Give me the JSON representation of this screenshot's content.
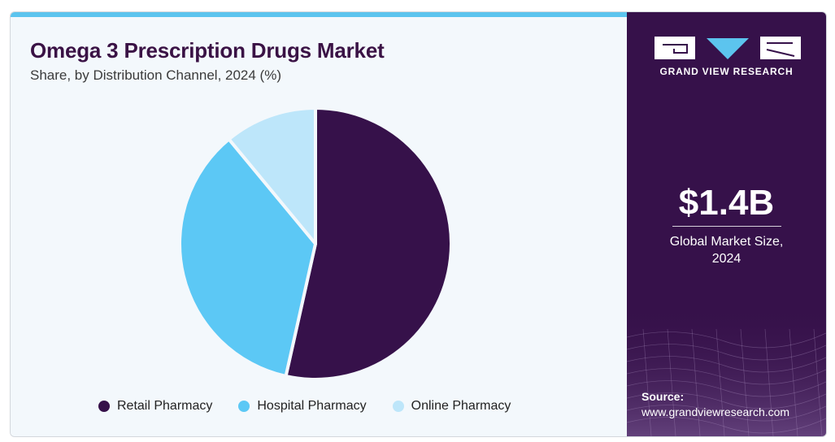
{
  "header": {
    "title": "Omega 3 Prescription Drugs Market",
    "subtitle": "Share, by Distribution Channel, 2024 (%)"
  },
  "chart_data": {
    "type": "pie",
    "title": "Omega 3 Prescription Drugs Market",
    "subtitle": "Share, by Distribution Channel, 2024 (%)",
    "categories": [
      "Retail Pharmacy",
      "Hospital Pharmacy",
      "Online Pharmacy"
    ],
    "values": [
      53.5,
      35.5,
      11.0
    ],
    "colors": [
      "#36114a",
      "#5cc8f5",
      "#bde6fa"
    ],
    "start_angle_deg": 0,
    "direction": "clockwise",
    "legend_position": "bottom"
  },
  "sidebar": {
    "brand": "GRAND VIEW RESEARCH",
    "market_size_value": "$1.4B",
    "market_size_label_line1": "Global Market Size,",
    "market_size_label_line2": "2024",
    "source_label": "Source:",
    "source_url": "www.grandviewresearch.com"
  }
}
